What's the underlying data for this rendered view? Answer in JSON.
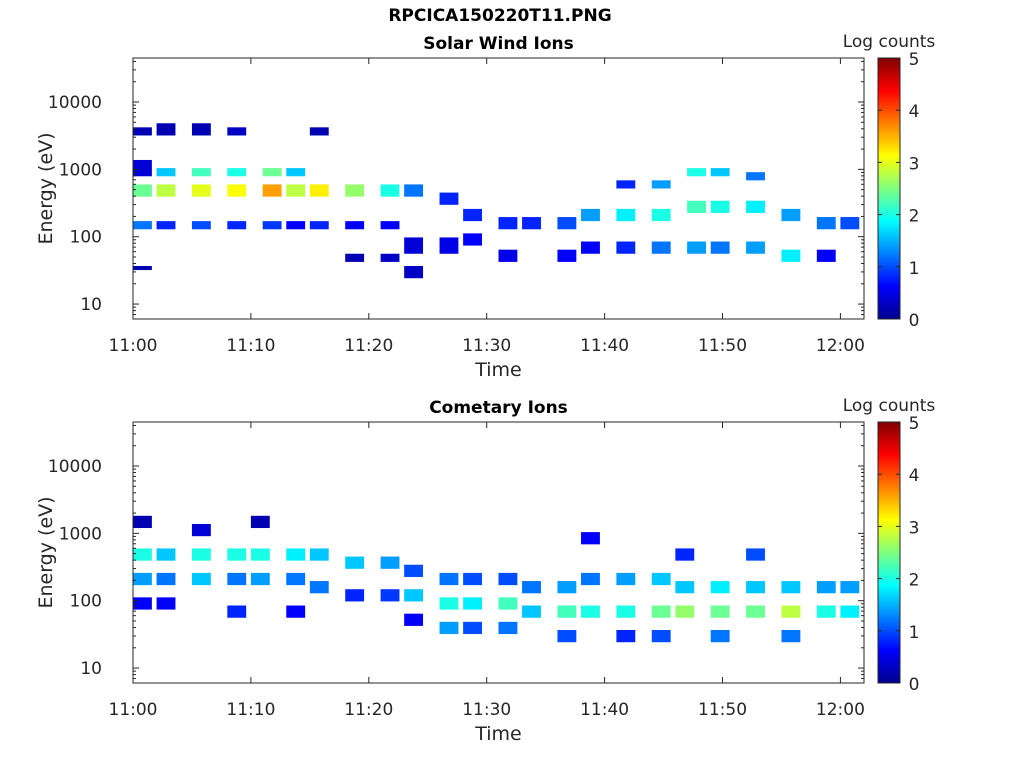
{
  "figure_title": "RPCICA150220T11.PNG",
  "chart_data": [
    {
      "type": "heatmap",
      "title": "Solar Wind Ions",
      "xlabel": "Time",
      "ylabel": "Energy (eV)",
      "x_ticks": [
        "11:00",
        "11:10",
        "11:20",
        "11:30",
        "11:40",
        "11:50",
        "12:00"
      ],
      "x_range_min": [
        0,
        62
      ],
      "y_scale": "log",
      "y_range": [
        6,
        45000
      ],
      "y_ticks": [
        "10",
        "100",
        "1000",
        "10000"
      ],
      "y_tick_values": [
        10,
        100,
        1000,
        10000
      ],
      "colorbar_label": "Log counts",
      "colorbar_range": [
        0,
        5
      ],
      "colorbar_ticks": [
        "0",
        "1",
        "2",
        "3",
        "4",
        "5"
      ],
      "time_step_min": 1.6,
      "energy_bins": 64,
      "cells": [
        [
          0,
          30,
          2.4,
          3
        ],
        [
          0,
          22,
          1.2,
          2
        ],
        [
          0,
          35,
          0.4,
          4
        ],
        [
          0,
          45,
          0.2,
          2
        ],
        [
          0,
          12,
          0.2,
          1
        ],
        [
          2,
          30,
          2.8,
          3
        ],
        [
          2,
          35,
          1.6,
          2
        ],
        [
          2,
          22,
          0.8,
          2
        ],
        [
          2,
          45,
          0.2,
          3
        ],
        [
          5,
          30,
          3.0,
          3
        ],
        [
          5,
          35,
          2.2,
          2
        ],
        [
          5,
          22,
          1.0,
          2
        ],
        [
          5,
          45,
          0.2,
          3
        ],
        [
          8,
          30,
          3.1,
          3
        ],
        [
          8,
          35,
          2.0,
          2
        ],
        [
          8,
          22,
          0.8,
          2
        ],
        [
          8,
          45,
          0.3,
          2
        ],
        [
          11,
          30,
          3.6,
          3
        ],
        [
          11,
          35,
          2.4,
          2
        ],
        [
          11,
          22,
          0.9,
          2
        ],
        [
          13,
          30,
          2.8,
          3
        ],
        [
          13,
          35,
          1.6,
          2
        ],
        [
          13,
          22,
          0.6,
          2
        ],
        [
          15,
          30,
          3.2,
          3
        ],
        [
          15,
          22,
          0.8,
          2
        ],
        [
          15,
          45,
          0.2,
          2
        ],
        [
          18,
          30,
          2.6,
          3
        ],
        [
          18,
          22,
          0.6,
          2
        ],
        [
          18,
          14,
          0.2,
          2
        ],
        [
          21,
          30,
          2.0,
          3
        ],
        [
          21,
          22,
          0.6,
          2
        ],
        [
          21,
          14,
          0.3,
          2
        ],
        [
          23,
          30,
          1.2,
          3
        ],
        [
          23,
          16,
          0.4,
          4
        ],
        [
          23,
          10,
          0.3,
          3
        ],
        [
          26,
          28,
          0.8,
          3
        ],
        [
          26,
          16,
          0.5,
          4
        ],
        [
          28,
          24,
          0.8,
          3
        ],
        [
          28,
          18,
          0.6,
          3
        ],
        [
          31,
          22,
          0.8,
          3
        ],
        [
          31,
          14,
          0.5,
          3
        ],
        [
          33,
          22,
          0.8,
          3
        ],
        [
          36,
          22,
          1.0,
          3
        ],
        [
          36,
          14,
          0.6,
          3
        ],
        [
          38,
          24,
          1.4,
          3
        ],
        [
          38,
          16,
          0.6,
          3
        ],
        [
          41,
          24,
          1.8,
          3
        ],
        [
          41,
          16,
          0.8,
          3
        ],
        [
          41,
          32,
          0.8,
          2
        ],
        [
          44,
          24,
          2.0,
          3
        ],
        [
          44,
          16,
          1.2,
          3
        ],
        [
          44,
          32,
          1.4,
          2
        ],
        [
          47,
          26,
          2.2,
          3
        ],
        [
          47,
          16,
          1.4,
          3
        ],
        [
          47,
          35,
          2.0,
          2
        ],
        [
          49,
          26,
          2.0,
          3
        ],
        [
          49,
          16,
          1.2,
          3
        ],
        [
          49,
          35,
          1.6,
          2
        ],
        [
          52,
          26,
          1.8,
          3
        ],
        [
          52,
          16,
          1.4,
          3
        ],
        [
          52,
          34,
          1.2,
          2
        ],
        [
          55,
          24,
          1.4,
          3
        ],
        [
          55,
          14,
          1.8,
          3
        ],
        [
          58,
          22,
          1.2,
          3
        ],
        [
          58,
          14,
          0.6,
          3
        ],
        [
          60,
          22,
          1.0,
          3
        ]
      ]
    },
    {
      "type": "heatmap",
      "title": "Cometary Ions",
      "xlabel": "Time",
      "ylabel": "Energy (eV)",
      "x_ticks": [
        "11:00",
        "11:10",
        "11:20",
        "11:30",
        "11:40",
        "11:50",
        "12:00"
      ],
      "x_range_min": [
        0,
        62
      ],
      "y_scale": "log",
      "y_range": [
        6,
        45000
      ],
      "y_ticks": [
        "10",
        "100",
        "1000",
        "10000"
      ],
      "y_tick_values": [
        10,
        100,
        1000,
        10000
      ],
      "colorbar_label": "Log counts",
      "colorbar_range": [
        0,
        5
      ],
      "colorbar_ticks": [
        "0",
        "1",
        "2",
        "3",
        "4",
        "5"
      ],
      "time_step_min": 1.6,
      "energy_bins": 64,
      "cells": [
        [
          0,
          30,
          2.0,
          3
        ],
        [
          0,
          24,
          1.4,
          3
        ],
        [
          0,
          18,
          0.6,
          3
        ],
        [
          0,
          38,
          0.2,
          3
        ],
        [
          2,
          30,
          1.6,
          3
        ],
        [
          2,
          24,
          1.2,
          3
        ],
        [
          2,
          18,
          0.6,
          3
        ],
        [
          5,
          30,
          2.0,
          3
        ],
        [
          5,
          24,
          1.6,
          3
        ],
        [
          5,
          36,
          0.4,
          3
        ],
        [
          8,
          30,
          2.0,
          3
        ],
        [
          8,
          24,
          1.2,
          3
        ],
        [
          8,
          16,
          0.8,
          3
        ],
        [
          10,
          30,
          2.0,
          3
        ],
        [
          10,
          24,
          1.4,
          3
        ],
        [
          10,
          38,
          0.2,
          3
        ],
        [
          13,
          30,
          1.8,
          3
        ],
        [
          13,
          24,
          1.2,
          3
        ],
        [
          13,
          16,
          0.6,
          3
        ],
        [
          15,
          30,
          1.6,
          3
        ],
        [
          15,
          22,
          1.2,
          3
        ],
        [
          18,
          28,
          1.6,
          3
        ],
        [
          18,
          20,
          0.8,
          3
        ],
        [
          21,
          28,
          1.4,
          3
        ],
        [
          21,
          20,
          0.9,
          3
        ],
        [
          23,
          26,
          1.0,
          3
        ],
        [
          23,
          20,
          1.6,
          3
        ],
        [
          23,
          14,
          0.6,
          3
        ],
        [
          26,
          24,
          1.2,
          3
        ],
        [
          26,
          18,
          2.0,
          3
        ],
        [
          26,
          12,
          1.4,
          3
        ],
        [
          28,
          24,
          1.0,
          3
        ],
        [
          28,
          18,
          1.8,
          3
        ],
        [
          28,
          12,
          1.0,
          3
        ],
        [
          31,
          24,
          1.0,
          3
        ],
        [
          31,
          18,
          2.2,
          3
        ],
        [
          31,
          12,
          1.2,
          3
        ],
        [
          33,
          22,
          1.2,
          3
        ],
        [
          33,
          16,
          1.6,
          3
        ],
        [
          36,
          22,
          1.4,
          3
        ],
        [
          36,
          16,
          2.2,
          3
        ],
        [
          36,
          10,
          1.0,
          3
        ],
        [
          38,
          24,
          1.2,
          3
        ],
        [
          38,
          16,
          2.0,
          3
        ],
        [
          38,
          34,
          0.6,
          3
        ],
        [
          41,
          24,
          1.4,
          3
        ],
        [
          41,
          16,
          2.0,
          3
        ],
        [
          41,
          10,
          0.8,
          3
        ],
        [
          44,
          24,
          1.6,
          3
        ],
        [
          44,
          16,
          2.4,
          3
        ],
        [
          44,
          10,
          1.0,
          3
        ],
        [
          46,
          22,
          1.6,
          3
        ],
        [
          46,
          16,
          2.6,
          3
        ],
        [
          46,
          30,
          0.8,
          3
        ],
        [
          49,
          22,
          1.8,
          3
        ],
        [
          49,
          16,
          2.4,
          3
        ],
        [
          49,
          10,
          1.2,
          3
        ],
        [
          52,
          22,
          1.6,
          3
        ],
        [
          52,
          16,
          2.4,
          3
        ],
        [
          52,
          30,
          1.0,
          3
        ],
        [
          55,
          22,
          1.6,
          3
        ],
        [
          55,
          16,
          2.8,
          3
        ],
        [
          55,
          10,
          1.2,
          3
        ],
        [
          58,
          22,
          1.4,
          3
        ],
        [
          58,
          16,
          2.0,
          3
        ],
        [
          60,
          22,
          1.4,
          3
        ],
        [
          60,
          16,
          1.8,
          3
        ]
      ]
    }
  ]
}
